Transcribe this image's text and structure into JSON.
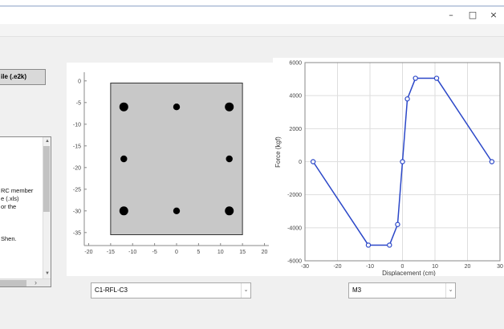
{
  "window": {
    "minimize_glyph": "–",
    "maximize_glyph": "□",
    "close_glyph": "×"
  },
  "file_button": {
    "label": "ile (.e2k)"
  },
  "notes": {
    "text": "RC member\ne (.xls)\nor the\n\n\n\nShen.",
    "scroll_up_glyph": "▲",
    "scroll_down_glyph": "▼",
    "scroll_left_glyph": "‹",
    "scroll_right_glyph": "›"
  },
  "section_selector": {
    "value": "C1-RFL-C3",
    "arrow_glyph": "⌄"
  },
  "direction_selector": {
    "value": "M3",
    "arrow_glyph": "⌄"
  },
  "colors": {
    "section_fill": "#c8c8c8",
    "curve": "#2b47c8",
    "rebar": "#000000",
    "grid": "#dedede"
  },
  "chart_data": [
    {
      "type": "scatter",
      "title": "",
      "xlabel": "",
      "ylabel": "",
      "xlim": [
        -21,
        21
      ],
      "ylim": [
        -38,
        2
      ],
      "xticks": [
        -20,
        -15,
        -10,
        -5,
        0,
        5,
        10,
        15,
        20
      ],
      "yticks": [
        0,
        -5,
        -10,
        -15,
        -20,
        -25,
        -30,
        -35
      ],
      "section_rect": {
        "x": [
          -15,
          15
        ],
        "y": [
          -35.5,
          -0.5
        ]
      },
      "rebars": [
        {
          "x": -12,
          "y": -6,
          "size": "large"
        },
        {
          "x": 0,
          "y": -6,
          "size": "small"
        },
        {
          "x": 12,
          "y": -6,
          "size": "large"
        },
        {
          "x": -12,
          "y": -18,
          "size": "small"
        },
        {
          "x": 12,
          "y": -18,
          "size": "small"
        },
        {
          "x": -12,
          "y": -30,
          "size": "large"
        },
        {
          "x": 0,
          "y": -30,
          "size": "small"
        },
        {
          "x": 12,
          "y": -30,
          "size": "large"
        }
      ],
      "grid": false
    },
    {
      "type": "line",
      "title": "",
      "xlabel": "Displacement (cm)",
      "ylabel": "Force (kgf)",
      "xlim": [
        -30,
        30
      ],
      "ylim": [
        -6000,
        6000
      ],
      "xticks": [
        -30,
        -20,
        -10,
        0,
        10,
        20,
        30
      ],
      "yticks": [
        6000,
        4000,
        2000,
        0,
        -2000,
        -4000,
        -6000
      ],
      "grid": true,
      "series": [
        {
          "x": [
            -27.5,
            -10.5,
            -4,
            -1.5,
            0,
            1.5,
            4,
            10.5,
            27.5
          ],
          "y": [
            0,
            -5050,
            -5050,
            -3800,
            0,
            3800,
            5050,
            5050,
            0
          ]
        }
      ]
    }
  ]
}
